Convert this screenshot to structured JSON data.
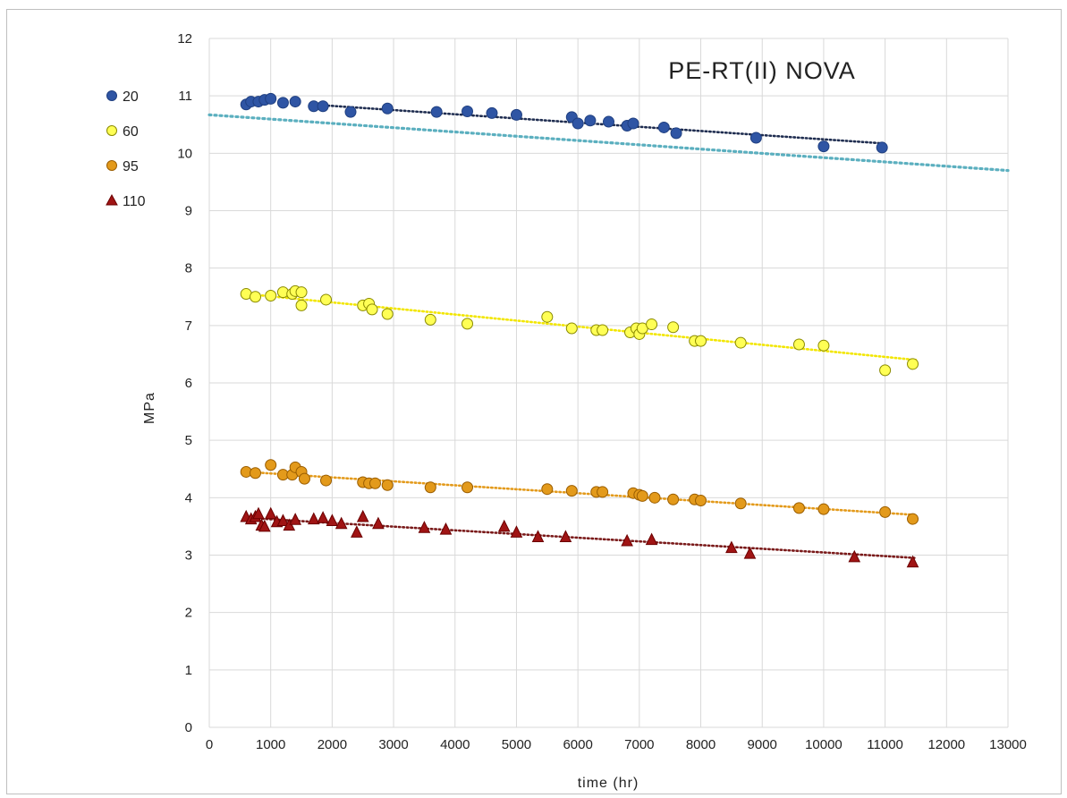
{
  "chart_data": {
    "type": "scatter",
    "title": "PE-RT(II) NOVA",
    "xlabel": "time (hr)",
    "ylabel": "MPa",
    "xlim": [
      0,
      13000
    ],
    "ylim": [
      0,
      12
    ],
    "xticks": [
      0,
      1000,
      2000,
      3000,
      4000,
      5000,
      6000,
      7000,
      8000,
      9000,
      10000,
      11000,
      12000,
      13000
    ],
    "yticks": [
      0,
      1,
      2,
      3,
      4,
      5,
      6,
      7,
      8,
      9,
      10,
      11,
      12
    ],
    "grid": true,
    "legend_position": "top-left",
    "series": [
      {
        "name": "20",
        "marker": "circle",
        "color": "#2f55a4",
        "stroke": "#1f3f80",
        "points": [
          [
            600,
            10.85
          ],
          [
            680,
            10.9
          ],
          [
            800,
            10.9
          ],
          [
            900,
            10.93
          ],
          [
            1000,
            10.95
          ],
          [
            1200,
            10.88
          ],
          [
            1400,
            10.9
          ],
          [
            1700,
            10.82
          ],
          [
            1850,
            10.82
          ],
          [
            2300,
            10.72
          ],
          [
            2900,
            10.78
          ],
          [
            3700,
            10.72
          ],
          [
            4200,
            10.73
          ],
          [
            4600,
            10.7
          ],
          [
            5000,
            10.67
          ],
          [
            5900,
            10.63
          ],
          [
            6000,
            10.52
          ],
          [
            6200,
            10.57
          ],
          [
            6500,
            10.55
          ],
          [
            6800,
            10.48
          ],
          [
            6900,
            10.52
          ],
          [
            7400,
            10.45
          ],
          [
            7600,
            10.35
          ],
          [
            8900,
            10.27
          ],
          [
            10000,
            10.12
          ],
          [
            10950,
            10.1
          ]
        ],
        "trend": [
          [
            1800,
            10.84
          ],
          [
            11000,
            10.17
          ]
        ],
        "trend_color": "#1f2d50"
      },
      {
        "name": "60",
        "marker": "circle",
        "color": "#ffff55",
        "stroke": "#8a8a00",
        "points": [
          [
            600,
            7.55
          ],
          [
            750,
            7.5
          ],
          [
            1000,
            7.52
          ],
          [
            1200,
            7.58
          ],
          [
            1350,
            7.55
          ],
          [
            1400,
            7.6
          ],
          [
            1500,
            7.58
          ],
          [
            1500,
            7.35
          ],
          [
            1900,
            7.45
          ],
          [
            2500,
            7.35
          ],
          [
            2600,
            7.38
          ],
          [
            2650,
            7.28
          ],
          [
            2900,
            7.2
          ],
          [
            3600,
            7.1
          ],
          [
            4200,
            7.03
          ],
          [
            5500,
            7.15
          ],
          [
            5900,
            6.95
          ],
          [
            6300,
            6.92
          ],
          [
            6400,
            6.92
          ],
          [
            6850,
            6.88
          ],
          [
            6950,
            6.95
          ],
          [
            7000,
            6.85
          ],
          [
            7050,
            6.95
          ],
          [
            7200,
            7.02
          ],
          [
            7550,
            6.97
          ],
          [
            7900,
            6.73
          ],
          [
            8000,
            6.73
          ],
          [
            8650,
            6.7
          ],
          [
            9600,
            6.67
          ],
          [
            10000,
            6.65
          ],
          [
            11000,
            6.22
          ],
          [
            11450,
            6.33
          ]
        ],
        "trend": [
          [
            600,
            7.55
          ],
          [
            11500,
            6.4
          ]
        ],
        "trend_color": "#f2e600"
      },
      {
        "name": "95",
        "marker": "circle",
        "color": "#e39a1b",
        "stroke": "#9a5d00",
        "points": [
          [
            600,
            4.45
          ],
          [
            750,
            4.43
          ],
          [
            1000,
            4.57
          ],
          [
            1200,
            4.4
          ],
          [
            1350,
            4.4
          ],
          [
            1400,
            4.53
          ],
          [
            1500,
            4.45
          ],
          [
            1550,
            4.33
          ],
          [
            1900,
            4.3
          ],
          [
            2500,
            4.27
          ],
          [
            2600,
            4.25
          ],
          [
            2700,
            4.25
          ],
          [
            2900,
            4.22
          ],
          [
            3600,
            4.18
          ],
          [
            4200,
            4.18
          ],
          [
            5500,
            4.15
          ],
          [
            5900,
            4.12
          ],
          [
            6300,
            4.1
          ],
          [
            6400,
            4.1
          ],
          [
            6900,
            4.08
          ],
          [
            7000,
            4.05
          ],
          [
            7050,
            4.03
          ],
          [
            7250,
            4.0
          ],
          [
            7550,
            3.97
          ],
          [
            7900,
            3.97
          ],
          [
            8000,
            3.95
          ],
          [
            8650,
            3.9
          ],
          [
            9600,
            3.82
          ],
          [
            10000,
            3.8
          ],
          [
            11000,
            3.75
          ],
          [
            11450,
            3.63
          ]
        ],
        "trend": [
          [
            600,
            4.45
          ],
          [
            11500,
            3.7
          ]
        ],
        "trend_color": "#e39a1b"
      },
      {
        "name": "110",
        "marker": "triangle",
        "color": "#a01414",
        "stroke": "#6b0000",
        "points": [
          [
            600,
            3.67
          ],
          [
            680,
            3.63
          ],
          [
            750,
            3.67
          ],
          [
            800,
            3.72
          ],
          [
            850,
            3.52
          ],
          [
            900,
            3.5
          ],
          [
            1000,
            3.72
          ],
          [
            1100,
            3.58
          ],
          [
            1200,
            3.6
          ],
          [
            1300,
            3.52
          ],
          [
            1400,
            3.62
          ],
          [
            1700,
            3.63
          ],
          [
            1850,
            3.65
          ],
          [
            2000,
            3.6
          ],
          [
            2150,
            3.55
          ],
          [
            2400,
            3.4
          ],
          [
            2500,
            3.67
          ],
          [
            2750,
            3.55
          ],
          [
            3500,
            3.48
          ],
          [
            3850,
            3.45
          ],
          [
            4800,
            3.5
          ],
          [
            5000,
            3.4
          ],
          [
            5350,
            3.32
          ],
          [
            5800,
            3.32
          ],
          [
            6800,
            3.25
          ],
          [
            7200,
            3.27
          ],
          [
            8500,
            3.13
          ],
          [
            8800,
            3.03
          ],
          [
            10500,
            2.97
          ],
          [
            11450,
            2.88
          ]
        ],
        "trend": [
          [
            600,
            3.65
          ],
          [
            11500,
            2.95
          ]
        ],
        "trend_color": "#7a1a1a"
      }
    ],
    "extra_trendlines": [
      {
        "from": [
          0,
          10.67
        ],
        "to": [
          13000,
          9.7
        ],
        "color": "#5bafbf"
      }
    ]
  }
}
